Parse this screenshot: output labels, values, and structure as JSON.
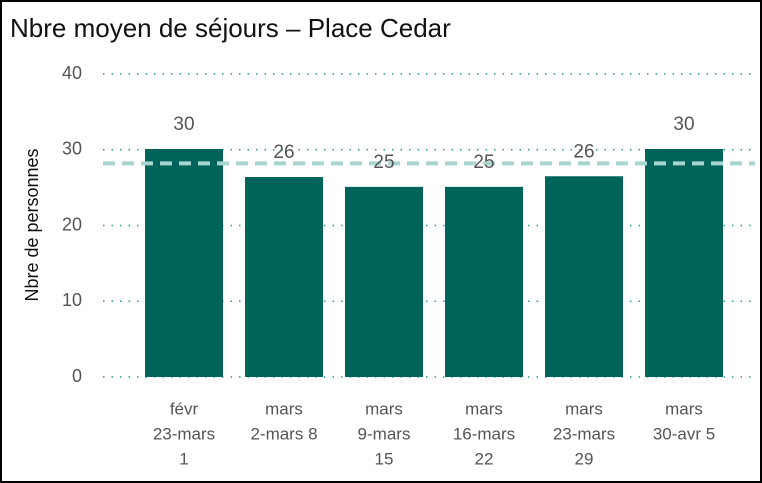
{
  "chart_data": {
    "type": "bar",
    "title": "Nbre moyen de séjours – Place Cedar",
    "y_label": "Nbre de personnes",
    "categories": [
      [
        "févr",
        "23-mars",
        "1"
      ],
      [
        "mars",
        "2-mars 8"
      ],
      [
        "mars",
        "9-mars",
        "15"
      ],
      [
        "mars",
        "16-mars",
        "22"
      ],
      [
        "mars",
        "23-mars",
        "29"
      ],
      [
        "mars",
        "30-avr 5"
      ]
    ],
    "values": [
      30.1,
      26.4,
      25.1,
      25.1,
      26.5,
      30.1
    ],
    "value_labels": [
      "30",
      "26",
      "25",
      "25",
      "26",
      "30"
    ],
    "color": "#00645a",
    "average": 28.2,
    "average_color": "#a8d5cf",
    "ylim": [
      0,
      40
    ],
    "yticks": [
      0,
      10,
      20,
      30,
      40
    ],
    "grid": true,
    "grid_color": "#2a9d8f"
  }
}
